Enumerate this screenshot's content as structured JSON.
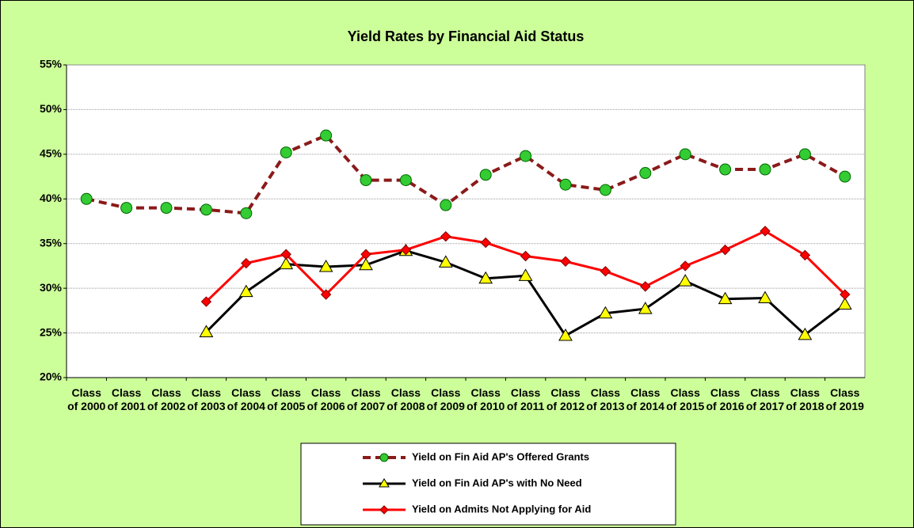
{
  "chart_data": {
    "type": "line",
    "title": "Yield Rates by Financial Aid Status",
    "categories": [
      "Class of 2000",
      "Class of 2001",
      "Class of 2002",
      "Class of 2003",
      "Class of 2004",
      "Class of 2005",
      "Class of 2006",
      "Class of 2007",
      "Class of 2008",
      "Class of 2009",
      "Class of 2010",
      "Class of 2011",
      "Class of 2012",
      "Class of 2013",
      "Class of 2014",
      "Class of 2015",
      "Class of 2016",
      "Class of 2017",
      "Class of 2018",
      "Class of 2019"
    ],
    "series": [
      {
        "name": "Yield on Fin Aid AP's Offered Grants",
        "color": "#8b1a1a",
        "marker": "circle",
        "marker_color": "#33cc33",
        "dashed": true,
        "values": [
          40,
          39,
          39,
          38.8,
          38.4,
          45.2,
          47.1,
          42.1,
          42.1,
          39.3,
          42.7,
          44.8,
          41.6,
          41.0,
          42.9,
          45.0,
          43.3,
          43.3,
          45.0,
          42.5
        ]
      },
      {
        "name": "Yield on Fin Aid AP's with No Need",
        "color": "#000000",
        "marker": "triangle",
        "marker_color": "#ffff00",
        "dashed": false,
        "values": [
          null,
          null,
          null,
          25.1,
          29.6,
          32.7,
          32.4,
          32.6,
          34.2,
          32.9,
          31.1,
          31.4,
          24.7,
          27.2,
          27.7,
          30.8,
          28.8,
          28.9,
          24.8,
          28.2
        ]
      },
      {
        "name": "Yield on Admits Not Applying for Aid",
        "color": "#ff0000",
        "marker": "diamond",
        "marker_color": "#ff0000",
        "dashed": false,
        "values": [
          null,
          null,
          null,
          28.5,
          32.8,
          33.8,
          29.3,
          33.8,
          34.3,
          35.8,
          35.1,
          33.6,
          33.0,
          31.9,
          30.2,
          32.5,
          34.3,
          36.4,
          33.7,
          29.3
        ]
      }
    ],
    "ylim": [
      20,
      55
    ],
    "yticks": [
      {
        "value": 20,
        "label": "20%"
      },
      {
        "value": 25,
        "label": "25%"
      },
      {
        "value": 30,
        "label": "30%"
      },
      {
        "value": 35,
        "label": "35%"
      },
      {
        "value": 40,
        "label": "40%"
      },
      {
        "value": 45,
        "label": "45%"
      },
      {
        "value": 50,
        "label": "50%"
      },
      {
        "value": 55,
        "label": "55%"
      }
    ],
    "grid": true
  }
}
